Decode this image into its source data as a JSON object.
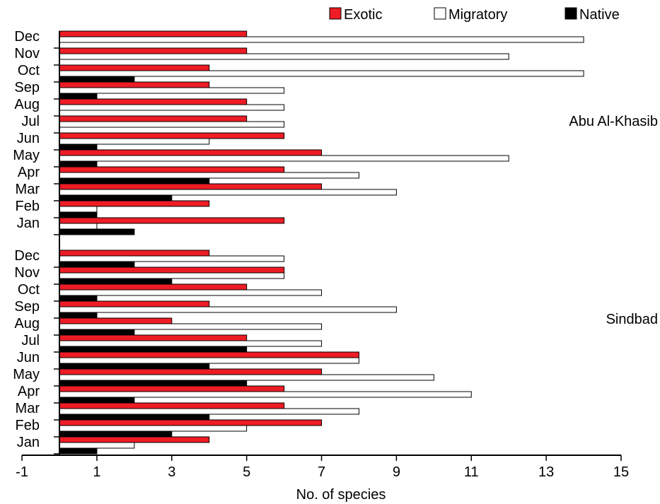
{
  "chart_data": {
    "type": "bar",
    "orientation": "horizontal",
    "xlabel": "No. of species",
    "xlim": [
      -1,
      15
    ],
    "xticks": [
      -1,
      1,
      3,
      5,
      7,
      9,
      11,
      13,
      15
    ],
    "legend": {
      "placement": "top-right",
      "entries": [
        {
          "name": "Exotic",
          "color": "#ee1c25"
        },
        {
          "name": "Migratory",
          "color": "#ffffff"
        },
        {
          "name": "Native",
          "color": "#000000"
        }
      ]
    },
    "categories": [
      "Jan",
      "Feb",
      "Mar",
      "Apr",
      "May",
      "Jun",
      "Jul",
      "Aug",
      "Sep",
      "Oct",
      "Nov",
      "Dec"
    ],
    "panels": [
      {
        "label": "Abu Al-Khasib",
        "series": [
          {
            "name": "Exotic",
            "values": [
              6,
              4,
              7,
              6,
              7,
              6,
              5,
              5,
              4,
              4,
              5,
              5
            ]
          },
          {
            "name": "Migratory",
            "values": [
              1,
              1,
              9,
              8,
              12,
              4,
              6,
              6,
              6,
              14,
              12,
              14
            ]
          },
          {
            "name": "Native",
            "values": [
              2,
              1,
              3,
              4,
              1,
              1,
              0,
              0,
              1,
              2,
              0,
              0
            ]
          }
        ]
      },
      {
        "label": "Sindbad",
        "series": [
          {
            "name": "Exotic",
            "values": [
              4,
              7,
              6,
              6,
              7,
              8,
              5,
              3,
              4,
              5,
              6,
              4
            ]
          },
          {
            "name": "Migratory",
            "values": [
              2,
              5,
              8,
              11,
              10,
              8,
              7,
              7,
              9,
              7,
              6,
              6
            ]
          },
          {
            "name": "Native",
            "values": [
              1,
              3,
              4,
              2,
              5,
              4,
              5,
              2,
              1,
              1,
              3,
              2
            ]
          }
        ]
      }
    ]
  }
}
